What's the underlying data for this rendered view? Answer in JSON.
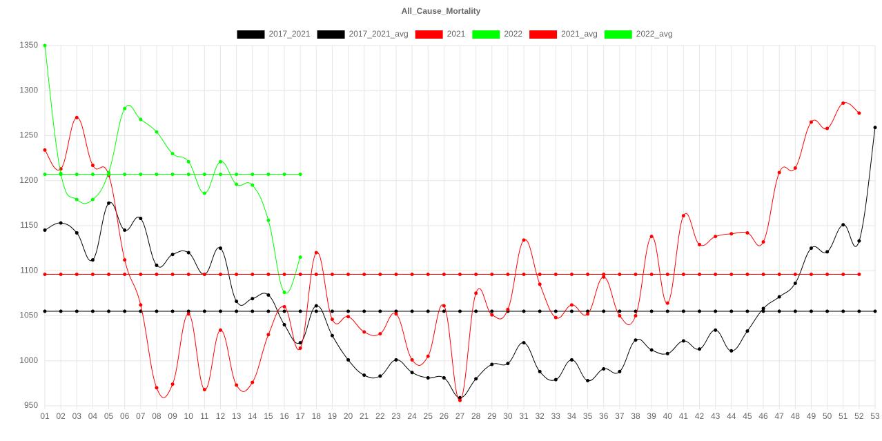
{
  "chart_data": {
    "type": "line",
    "title": "All_Cause_Mortality",
    "categories": [
      "01",
      "02",
      "03",
      "04",
      "05",
      "06",
      "07",
      "08",
      "09",
      "10",
      "11",
      "12",
      "13",
      "14",
      "15",
      "16",
      "17",
      "18",
      "19",
      "20",
      "21",
      "22",
      "23",
      "24",
      "25",
      "26",
      "27",
      "28",
      "29",
      "30",
      "31",
      "32",
      "33",
      "34",
      "35",
      "36",
      "37",
      "38",
      "39",
      "40",
      "41",
      "42",
      "43",
      "44",
      "45",
      "46",
      "47",
      "48",
      "49",
      "50",
      "51",
      "52",
      "53"
    ],
    "ylim": [
      950,
      1350
    ],
    "yticks": [
      950,
      1000,
      1050,
      1100,
      1150,
      1200,
      1250,
      1300,
      1350
    ],
    "grid": true,
    "series": [
      {
        "name": "2017_2021",
        "color": "#000000",
        "values": [
          1145,
          1153,
          1142,
          1112,
          1175,
          1145,
          1158,
          1106,
          1118,
          1120,
          1096,
          1125,
          1066,
          1069,
          1073,
          1040,
          1020,
          1061,
          1028,
          1001,
          984,
          983,
          1001,
          987,
          981,
          981,
          959,
          980,
          996,
          997,
          1020,
          988,
          979,
          1001,
          978,
          991,
          988,
          1023,
          1012,
          1008,
          1022,
          1013,
          1034,
          1011,
          1033,
          1058,
          1071,
          1086,
          1125,
          1121,
          1151,
          1133,
          1259
        ]
      },
      {
        "name": "2017_2021_avg",
        "color": "#000000",
        "values": [
          1055,
          1055,
          1055,
          1055,
          1055,
          1055,
          1055,
          1055,
          1055,
          1055,
          1055,
          1055,
          1055,
          1055,
          1055,
          1055,
          1055,
          1055,
          1055,
          1055,
          1055,
          1055,
          1055,
          1055,
          1055,
          1055,
          1055,
          1055,
          1055,
          1055,
          1055,
          1055,
          1055,
          1055,
          1055,
          1055,
          1055,
          1055,
          1055,
          1055,
          1055,
          1055,
          1055,
          1055,
          1055,
          1055,
          1055,
          1055,
          1055,
          1055,
          1055,
          1055,
          1055
        ]
      },
      {
        "name": "2021",
        "color": "#ff0000",
        "values": [
          1234,
          1213,
          1270,
          1217,
          1206,
          1112,
          1062,
          970,
          974,
          1052,
          968,
          1034,
          973,
          976,
          1029,
          1060,
          1014,
          1120,
          1046,
          1049,
          1032,
          1030,
          1052,
          1001,
          1005,
          1061,
          956,
          1075,
          1051,
          1057,
          1134,
          1085,
          1048,
          1062,
          1052,
          1093,
          1050,
          1050,
          1138,
          1064,
          1161,
          1129,
          1138,
          1141,
          1142,
          1132,
          1209,
          1214,
          1265,
          1258,
          1286,
          1275,
          null
        ]
      },
      {
        "name": "2022",
        "color": "#00ff00",
        "values": [
          1350,
          1208,
          1179,
          1179,
          1209,
          1280,
          1268,
          1254,
          1230,
          1221,
          1186,
          1221,
          1196,
          1195,
          1156,
          1076,
          1115,
          null,
          null,
          null,
          null,
          null,
          null,
          null,
          null,
          null,
          null,
          null,
          null,
          null,
          null,
          null,
          null,
          null,
          null,
          null,
          null,
          null,
          null,
          null,
          null,
          null,
          null,
          null,
          null,
          null,
          null,
          null,
          null,
          null,
          null,
          null,
          null
        ]
      },
      {
        "name": "2021_avg",
        "color": "#ff0000",
        "values": [
          1096,
          1096,
          1096,
          1096,
          1096,
          1096,
          1096,
          1096,
          1096,
          1096,
          1096,
          1096,
          1096,
          1096,
          1096,
          1096,
          1096,
          1096,
          1096,
          1096,
          1096,
          1096,
          1096,
          1096,
          1096,
          1096,
          1096,
          1096,
          1096,
          1096,
          1096,
          1096,
          1096,
          1096,
          1096,
          1096,
          1096,
          1096,
          1096,
          1096,
          1096,
          1096,
          1096,
          1096,
          1096,
          1096,
          1096,
          1096,
          1096,
          1096,
          1096,
          1096,
          null
        ]
      },
      {
        "name": "2022_avg",
        "color": "#00ff00",
        "values": [
          1207,
          1207,
          1207,
          1207,
          1207,
          1207,
          1207,
          1207,
          1207,
          1207,
          1207,
          1207,
          1207,
          1207,
          1207,
          1207,
          1207,
          null,
          null,
          null,
          null,
          null,
          null,
          null,
          null,
          null,
          null,
          null,
          null,
          null,
          null,
          null,
          null,
          null,
          null,
          null,
          null,
          null,
          null,
          null,
          null,
          null,
          null,
          null,
          null,
          null,
          null,
          null,
          null,
          null,
          null,
          null,
          null
        ]
      }
    ]
  }
}
